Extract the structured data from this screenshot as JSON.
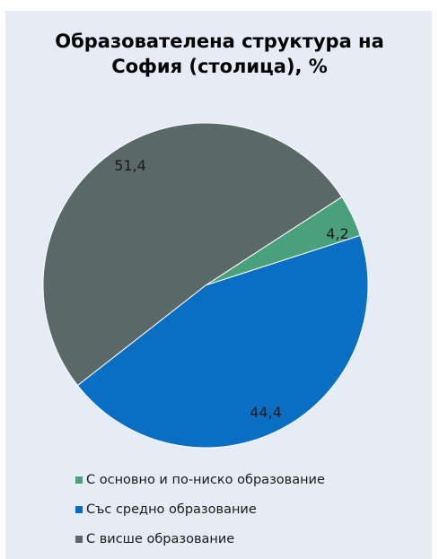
{
  "chart_data": {
    "type": "pie",
    "title_lines": [
      "Образователена структура на",
      "София (столица), %"
    ],
    "slices": [
      {
        "name": "С основно и по-ниско образование",
        "value": 4.2,
        "label": "4,2",
        "color": "#4aa07a"
      },
      {
        "name": "Със средно образование",
        "value": 44.4,
        "label": "44,4",
        "color": "#0a6fc2"
      },
      {
        "name": "С висше образование",
        "value": 51.4,
        "label": "51,4",
        "color": "#5a6868"
      }
    ],
    "legend_position": "bottom"
  }
}
